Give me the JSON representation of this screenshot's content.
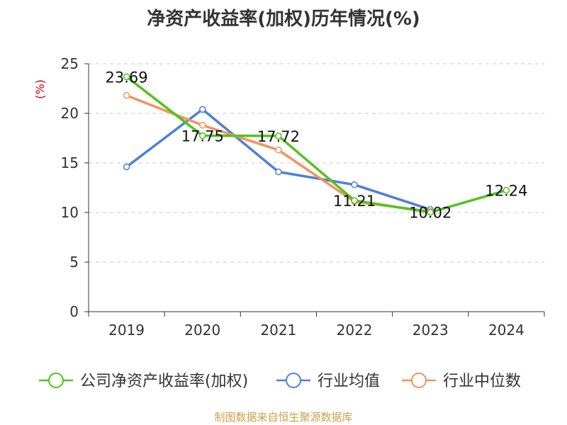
{
  "chart_data": {
    "type": "line",
    "title": "净资产收益率(加权)历年情况(%)",
    "ylabel": "(%)",
    "xlabel": "",
    "categories": [
      "2019",
      "2020",
      "2021",
      "2022",
      "2023",
      "2024"
    ],
    "ylim": [
      0,
      25
    ],
    "yticks": [
      0,
      5,
      10,
      15,
      20,
      25
    ],
    "grid": true,
    "legend_position": "bottom",
    "series": [
      {
        "name": "公司净资产收益率(加权)",
        "color": "#52c41a",
        "values": [
          23.69,
          17.75,
          17.72,
          11.21,
          10.02,
          12.24
        ],
        "labels": [
          "23.69",
          "17.75",
          "17.72",
          "11.21",
          "10.02",
          "12.24"
        ]
      },
      {
        "name": "行业均值",
        "color": "#4f7fd9",
        "values": [
          14.6,
          20.4,
          14.1,
          12.8,
          10.3,
          null
        ]
      },
      {
        "name": "行业中位数",
        "color": "#f5925e",
        "values": [
          21.8,
          18.8,
          16.3,
          11.1,
          10.1,
          null
        ]
      }
    ],
    "source": "制图数据来自恒生聚源数据库"
  }
}
